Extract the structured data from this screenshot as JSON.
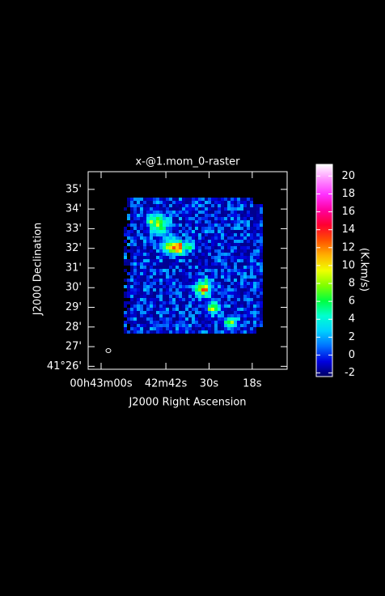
{
  "chart_data": {
    "type": "raster",
    "title": "x-@1.mom_0-raster",
    "xlabel": "J2000 Right Ascension",
    "ylabel": "J2000 Declination",
    "xlim": [
      63.6,
      8.3
    ],
    "xticks": [
      {
        "value": 60,
        "label": "00h43m00s"
      },
      {
        "value": 42,
        "label": "42m42s"
      },
      {
        "value": 30,
        "label": "30s"
      },
      {
        "value": 18,
        "label": "18s"
      }
    ],
    "ylim": [
      25.85,
      35.9
    ],
    "yticks": [
      {
        "value": 26,
        "label": "41°26'"
      },
      {
        "value": 27,
        "label": "27'"
      },
      {
        "value": 28,
        "label": "28'"
      },
      {
        "value": 29,
        "label": "29'"
      },
      {
        "value": 30,
        "label": "30'"
      },
      {
        "value": 31,
        "label": "31'"
      },
      {
        "value": 32,
        "label": "32'"
      },
      {
        "value": 33,
        "label": "33'"
      },
      {
        "value": 34,
        "label": "34'"
      },
      {
        "value": 35,
        "label": "35'"
      }
    ],
    "colorbar_label": "(K.km/s)",
    "clim": [
      -2.4,
      21.3
    ],
    "cticks": [
      -2,
      0,
      2,
      4,
      6,
      8,
      10,
      12,
      14,
      16,
      18,
      20
    ],
    "colormap": [
      "#000060",
      "#0000e0",
      "#0070ff",
      "#00d0ff",
      "#00ffd0",
      "#00ff40",
      "#80ff00",
      "#f0ff00",
      "#ffb000",
      "#ff5000",
      "#ff0030",
      "#ff00a0",
      "#ff30ff",
      "#ff90ff",
      "#ffffff"
    ]
  }
}
